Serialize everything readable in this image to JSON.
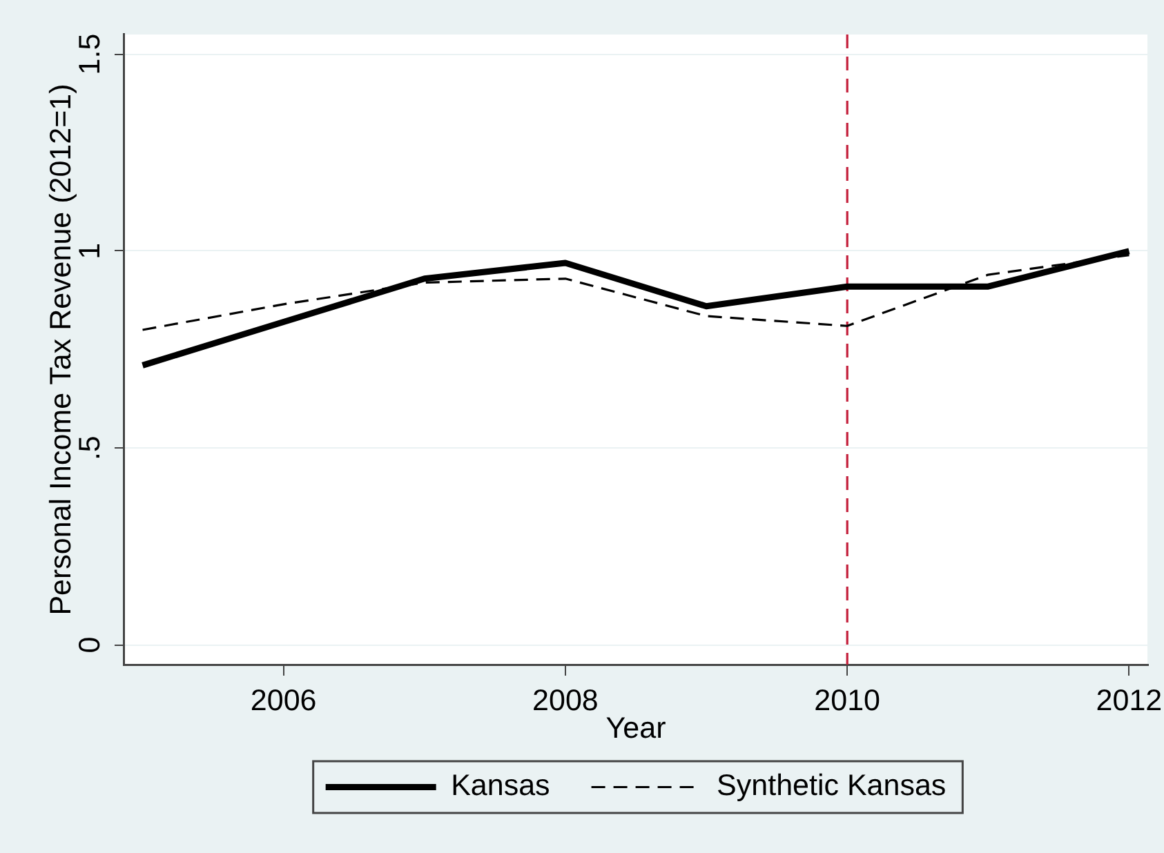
{
  "chart_data": {
    "type": "line",
    "xlabel": "Year",
    "ylabel": "Personal Income Tax Revenue (2012=1)",
    "x": [
      2005,
      2006,
      2007,
      2008,
      2009,
      2010,
      2011,
      2012
    ],
    "series": [
      {
        "name": "Kansas",
        "color": "#000000",
        "line_style": "solid",
        "values": [
          0.71,
          0.82,
          0.93,
          0.97,
          0.86,
          0.91,
          0.91,
          1.0
        ]
      },
      {
        "name": "Synthetic Kansas",
        "color": "#000000",
        "line_style": "dashed",
        "values": [
          0.8,
          0.865,
          0.92,
          0.93,
          0.835,
          0.81,
          0.94,
          0.99
        ]
      }
    ],
    "xlim": [
      2004.87,
      2012.13
    ],
    "xticks": [
      2006,
      2008,
      2010,
      2012
    ],
    "ylim": [
      -0.05,
      1.55
    ],
    "yticks": [
      0,
      {
        "value": 0.5,
        "label": ".5"
      },
      1,
      1.5
    ],
    "grid": "y",
    "legend": "bottom",
    "marker": "none",
    "ref_lines": [
      {
        "axis": "x",
        "value": 2010,
        "color": "#c41e3a",
        "line_style": "dashed"
      }
    ]
  }
}
